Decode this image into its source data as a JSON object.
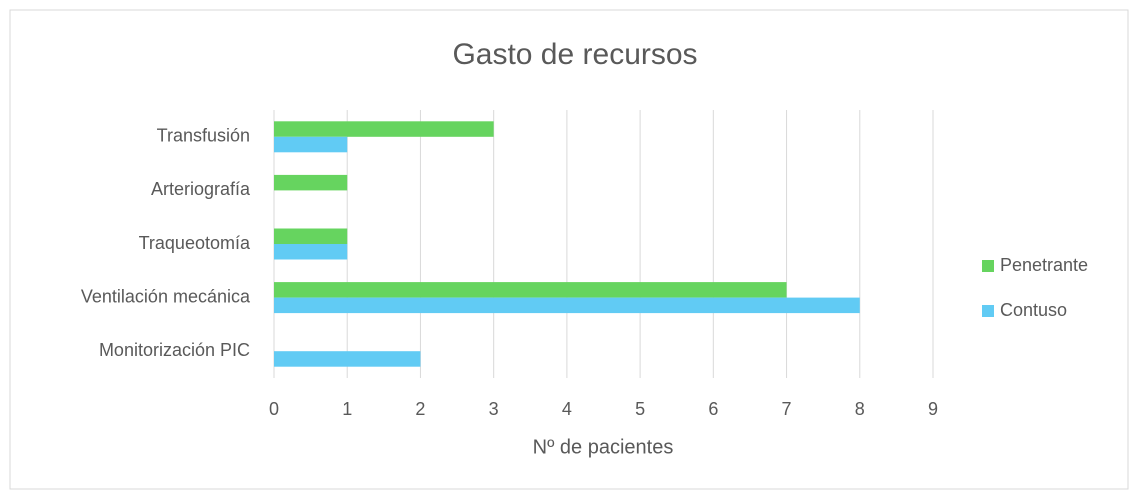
{
  "chart_data": {
    "type": "bar",
    "orientation": "horizontal",
    "title": "Gasto de recursos",
    "xlabel": "Nº de pacientes",
    "categories": [
      "Transfusión",
      "Arteriografía",
      "Traqueotomía",
      "Ventilación mecánica",
      "Monitorización PIC"
    ],
    "series": [
      {
        "name": "Penetrante",
        "color": "#66d45f",
        "values": [
          3,
          1,
          1,
          7,
          0
        ]
      },
      {
        "name": "Contuso",
        "color": "#61cbf4",
        "values": [
          1,
          0,
          1,
          8,
          2
        ]
      }
    ],
    "xlim": [
      0,
      9
    ],
    "xticks": [
      0,
      1,
      2,
      3,
      4,
      5,
      6,
      7,
      8,
      9
    ],
    "grid": true,
    "legend": "right"
  }
}
